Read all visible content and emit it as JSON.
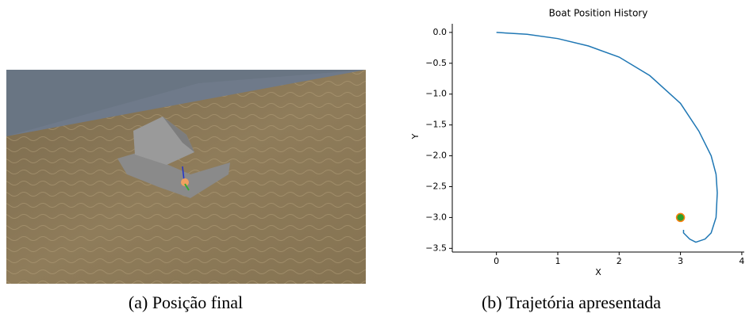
{
  "chart_data": {
    "type": "line",
    "title": "Boat Position History",
    "x_label": "X",
    "y_label": "Y",
    "x": [
      0,
      0.5,
      1,
      1.5,
      2,
      2.5,
      3,
      3.3,
      3.5,
      3.58,
      3.6,
      3.58,
      3.5,
      3.4,
      3.25,
      3.15,
      3.05,
      3.05
    ],
    "series": [
      {
        "color": "#1f77b4",
        "values": [
          0,
          -0.03,
          -0.1,
          -0.22,
          -0.4,
          -0.7,
          -1.15,
          -1.6,
          -2.0,
          -2.3,
          -2.6,
          -3.0,
          -3.25,
          -3.35,
          -3.4,
          -3.35,
          -3.25,
          -3.2
        ]
      }
    ],
    "point": {
      "x": 3,
      "y": -3,
      "color": "#2ca02c",
      "edge": "#ff7f0e"
    },
    "xlim": [
      -0.72,
      4.04
    ],
    "ylim": [
      -3.56,
      0.14
    ],
    "xticks": [
      0,
      1,
      2,
      3,
      4
    ],
    "yticks": [
      {
        "value": 0,
        "label": "0.0"
      },
      {
        "value": -0.5,
        "label": "−0.5"
      },
      {
        "value": -1,
        "label": "−1.0"
      },
      {
        "value": -1.5,
        "label": "−1.5"
      },
      {
        "value": -2,
        "label": "−2.0"
      },
      {
        "value": -2.5,
        "label": "−2.5"
      },
      {
        "value": -3,
        "label": "−3.0"
      },
      {
        "value": -3.5,
        "label": "−3.5"
      }
    ]
  },
  "captions": [
    "(a) Posição final",
    "(b) Trajetória apresentada"
  ]
}
